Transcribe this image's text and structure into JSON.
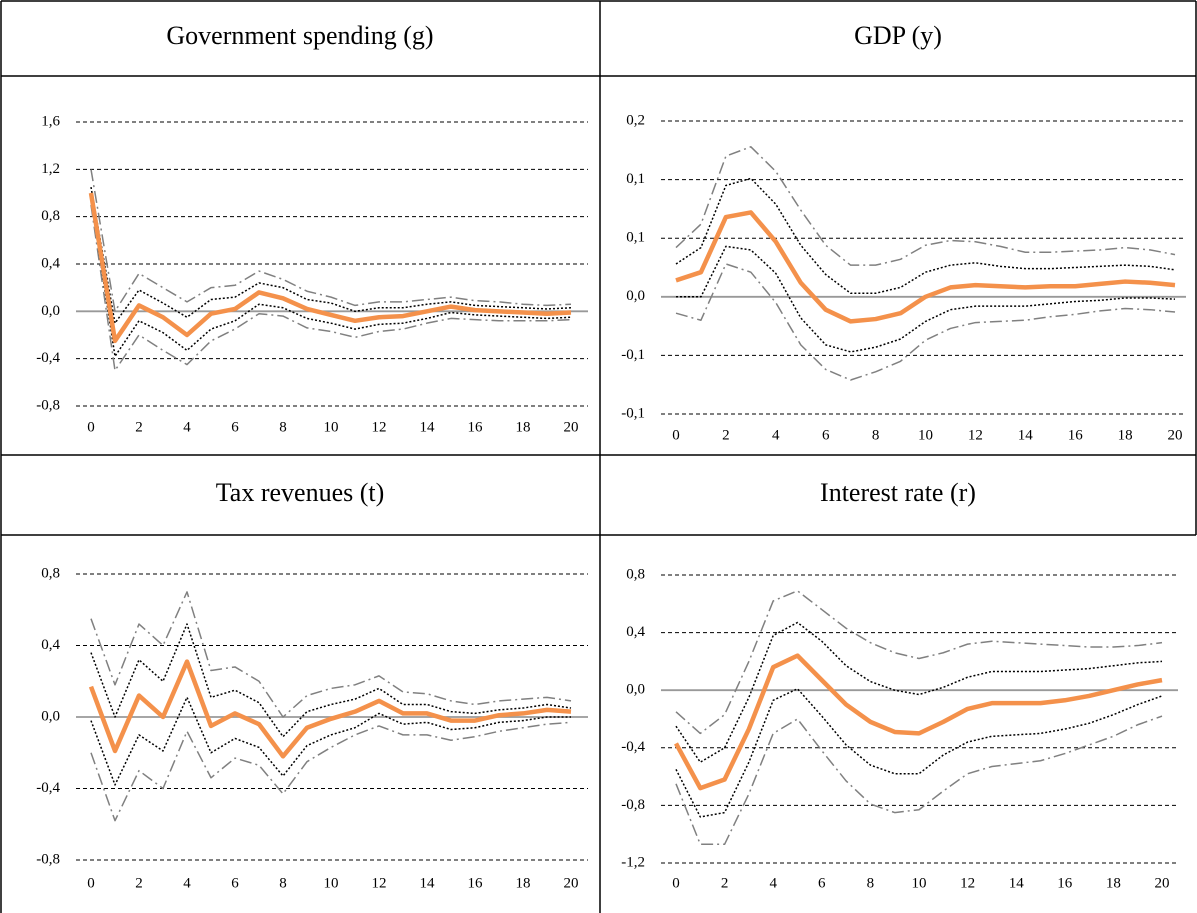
{
  "chart_data": [
    {
      "type": "line",
      "title": "Government spending (g)",
      "x": [
        0,
        1,
        2,
        3,
        4,
        5,
        6,
        7,
        8,
        9,
        10,
        11,
        12,
        13,
        14,
        15,
        16,
        17,
        18,
        19,
        20
      ],
      "xlim": [
        0,
        20
      ],
      "xticks": [
        0,
        2,
        4,
        6,
        8,
        10,
        12,
        14,
        16,
        18,
        20
      ],
      "ylim": [
        -0.8,
        1.6
      ],
      "yticks": [
        {
          "value": 1.6,
          "label": "1,6"
        },
        {
          "value": 1.2,
          "label": "1,2"
        },
        {
          "value": 0.8,
          "label": "0,8"
        },
        {
          "value": 0.4,
          "label": "0,4"
        },
        {
          "value": 0,
          "label": "0,0"
        },
        {
          "value": -0.4,
          "label": "-0,4"
        },
        {
          "value": -0.8,
          "label": "-0,8"
        }
      ],
      "grid": true,
      "series": [
        {
          "color": "#808080",
          "style": "dashdot",
          "values": [
            1.2,
            0.0,
            0.32,
            0.2,
            0.08,
            0.2,
            0.22,
            0.34,
            0.27,
            0.17,
            0.12,
            0.05,
            0.08,
            0.08,
            0.1,
            0.12,
            0.09,
            0.08,
            0.06,
            0.05,
            0.06
          ]
        },
        {
          "color": "#808080",
          "style": "dashdot",
          "values": [
            0.9,
            -0.5,
            -0.2,
            -0.33,
            -0.45,
            -0.25,
            -0.15,
            -0.02,
            -0.04,
            -0.14,
            -0.17,
            -0.22,
            -0.17,
            -0.15,
            -0.1,
            -0.06,
            -0.07,
            -0.08,
            -0.08,
            -0.08,
            -0.07
          ]
        },
        {
          "color": "#000000",
          "style": "dotted",
          "values": [
            1.05,
            -0.1,
            0.18,
            0.07,
            -0.05,
            0.1,
            0.12,
            0.24,
            0.2,
            0.1,
            0.07,
            0.0,
            0.03,
            0.03,
            0.06,
            0.08,
            0.05,
            0.04,
            0.03,
            0.02,
            0.03
          ]
        },
        {
          "color": "#000000",
          "style": "dotted",
          "values": [
            0.95,
            -0.38,
            -0.08,
            -0.18,
            -0.33,
            -0.15,
            -0.08,
            0.06,
            0.03,
            -0.06,
            -0.1,
            -0.15,
            -0.11,
            -0.1,
            -0.06,
            -0.01,
            -0.03,
            -0.04,
            -0.05,
            -0.06,
            -0.05
          ]
        },
        {
          "color": "#f4914b",
          "style": "solid",
          "values": [
            1.0,
            -0.25,
            0.05,
            -0.05,
            -0.2,
            -0.02,
            0.02,
            0.16,
            0.11,
            0.02,
            -0.03,
            -0.08,
            -0.05,
            -0.04,
            0.0,
            0.04,
            0.01,
            0.0,
            -0.01,
            -0.02,
            -0.01
          ]
        }
      ]
    },
    {
      "type": "line",
      "title": "GDP (y)",
      "x": [
        0,
        1,
        2,
        3,
        4,
        5,
        6,
        7,
        8,
        9,
        10,
        11,
        12,
        13,
        14,
        15,
        16,
        17,
        18,
        19,
        20
      ],
      "xlim": [
        0,
        20
      ],
      "xticks": [
        0,
        2,
        4,
        6,
        8,
        10,
        12,
        14,
        16,
        18,
        20
      ],
      "ylim": [
        -0.1,
        0.15
      ],
      "yticks": [
        {
          "value": 0.15,
          "label": "0,2"
        },
        {
          "value": 0.1,
          "label": "0,1"
        },
        {
          "value": 0.05,
          "label": "0,1"
        },
        {
          "value": 0,
          "label": "0,0"
        },
        {
          "value": -0.05,
          "label": "-0,1"
        },
        {
          "value": -0.1,
          "label": "-0,1"
        }
      ],
      "grid": true,
      "series": [
        {
          "color": "#808080",
          "style": "dashdot",
          "values": [
            0.042,
            0.062,
            0.12,
            0.128,
            0.107,
            0.074,
            0.044,
            0.027,
            0.027,
            0.032,
            0.044,
            0.048,
            0.047,
            0.043,
            0.038,
            0.038,
            0.039,
            0.04,
            0.042,
            0.04,
            0.036
          ]
        },
        {
          "color": "#808080",
          "style": "dashdot",
          "values": [
            -0.014,
            -0.02,
            0.028,
            0.021,
            -0.005,
            -0.041,
            -0.062,
            -0.071,
            -0.064,
            -0.055,
            -0.037,
            -0.027,
            -0.022,
            -0.021,
            -0.02,
            -0.017,
            -0.015,
            -0.012,
            -0.01,
            -0.011,
            -0.013
          ]
        },
        {
          "color": "#000000",
          "style": "dotted",
          "values": [
            0.028,
            0.042,
            0.095,
            0.101,
            0.079,
            0.044,
            0.019,
            0.003,
            0.003,
            0.008,
            0.021,
            0.027,
            0.029,
            0.026,
            0.024,
            0.024,
            0.025,
            0.026,
            0.027,
            0.026,
            0.023
          ]
        },
        {
          "color": "#000000",
          "style": "dotted",
          "values": [
            0,
            0,
            0.043,
            0.04,
            0.02,
            -0.018,
            -0.041,
            -0.047,
            -0.043,
            -0.036,
            -0.021,
            -0.011,
            -0.008,
            -0.008,
            -0.008,
            -0.006,
            -0.004,
            -0.003,
            -0.001,
            -0.001,
            -0.002
          ]
        },
        {
          "color": "#f4914b",
          "style": "solid",
          "values": [
            0.014,
            0.021,
            0.068,
            0.072,
            0.047,
            0.012,
            -0.011,
            -0.021,
            -0.019,
            -0.014,
            0,
            0.008,
            0.01,
            0.009,
            0.008,
            0.009,
            0.009,
            0.011,
            0.013,
            0.012,
            0.01
          ]
        }
      ]
    },
    {
      "type": "line",
      "title": "Tax revenues (t)",
      "x": [
        0,
        1,
        2,
        3,
        4,
        5,
        6,
        7,
        8,
        9,
        10,
        11,
        12,
        13,
        14,
        15,
        16,
        17,
        18,
        19,
        20
      ],
      "xlim": [
        0,
        20
      ],
      "xticks": [
        0,
        2,
        4,
        6,
        8,
        10,
        12,
        14,
        16,
        18,
        20
      ],
      "ylim": [
        -0.8,
        0.8
      ],
      "yticks": [
        {
          "value": 0.8,
          "label": "0,8"
        },
        {
          "value": 0.4,
          "label": "0,4"
        },
        {
          "value": 0,
          "label": "0,0"
        },
        {
          "value": -0.4,
          "label": "-0,4"
        },
        {
          "value": -0.8,
          "label": "-0,8"
        }
      ],
      "grid": true,
      "series": [
        {
          "color": "#808080",
          "style": "dashdot",
          "values": [
            0.55,
            0.18,
            0.52,
            0.4,
            0.7,
            0.26,
            0.28,
            0.2,
            0.0,
            0.12,
            0.16,
            0.18,
            0.23,
            0.14,
            0.13,
            0.09,
            0.07,
            0.09,
            0.1,
            0.11,
            0.09
          ]
        },
        {
          "color": "#808080",
          "style": "dashdot",
          "values": [
            -0.2,
            -0.58,
            -0.3,
            -0.4,
            -0.08,
            -0.34,
            -0.23,
            -0.27,
            -0.43,
            -0.25,
            -0.17,
            -0.1,
            -0.05,
            -0.1,
            -0.1,
            -0.13,
            -0.11,
            -0.08,
            -0.06,
            -0.04,
            -0.03
          ]
        },
        {
          "color": "#000000",
          "style": "dotted",
          "values": [
            0.36,
            0.0,
            0.32,
            0.2,
            0.52,
            0.11,
            0.15,
            0.08,
            -0.11,
            0.03,
            0.07,
            0.1,
            0.16,
            0.07,
            0.07,
            0.03,
            0.02,
            0.04,
            0.05,
            0.07,
            0.05
          ]
        },
        {
          "color": "#000000",
          "style": "dotted",
          "values": [
            -0.02,
            -0.38,
            -0.1,
            -0.19,
            0.11,
            -0.2,
            -0.12,
            -0.17,
            -0.33,
            -0.16,
            -0.1,
            -0.06,
            0.02,
            -0.04,
            -0.03,
            -0.07,
            -0.06,
            -0.03,
            -0.02,
            0.0,
            0.0
          ]
        },
        {
          "color": "#f4914b",
          "style": "solid",
          "values": [
            0.17,
            -0.19,
            0.12,
            0.0,
            0.31,
            -0.05,
            0.02,
            -0.04,
            -0.22,
            -0.06,
            -0.01,
            0.03,
            0.09,
            0.02,
            0.02,
            -0.02,
            -0.02,
            0.01,
            0.02,
            0.04,
            0.03
          ]
        }
      ]
    },
    {
      "type": "line",
      "title": "Interest rate (r)",
      "x": [
        0,
        1,
        2,
        3,
        4,
        5,
        6,
        7,
        8,
        9,
        10,
        11,
        12,
        13,
        14,
        15,
        16,
        17,
        18,
        19,
        20
      ],
      "xlim": [
        0,
        20
      ],
      "xticks": [
        0,
        2,
        4,
        6,
        8,
        10,
        12,
        14,
        16,
        18,
        20
      ],
      "ylim": [
        -1.2,
        0.8
      ],
      "yticks": [
        {
          "value": 0.8,
          "label": "0,8"
        },
        {
          "value": 0.4,
          "label": "0,4"
        },
        {
          "value": 0,
          "label": "0,0"
        },
        {
          "value": -0.4,
          "label": "-0,4"
        },
        {
          "value": -0.8,
          "label": "-0,8"
        },
        {
          "value": -1.2,
          "label": "-1,2"
        }
      ],
      "grid": true,
      "series": [
        {
          "color": "#808080",
          "style": "dashdot",
          "values": [
            -0.15,
            -0.3,
            -0.17,
            0.2,
            0.62,
            0.69,
            0.56,
            0.43,
            0.33,
            0.26,
            0.22,
            0.26,
            0.32,
            0.34,
            0.33,
            0.32,
            0.31,
            0.3,
            0.3,
            0.31,
            0.33
          ]
        },
        {
          "color": "#808080",
          "style": "dashdot",
          "values": [
            -0.65,
            -1.07,
            -1.07,
            -0.72,
            -0.3,
            -0.2,
            -0.42,
            -0.63,
            -0.79,
            -0.85,
            -0.83,
            -0.7,
            -0.58,
            -0.53,
            -0.51,
            -0.49,
            -0.44,
            -0.38,
            -0.32,
            -0.24,
            -0.18
          ]
        },
        {
          "color": "#000000",
          "style": "dotted",
          "values": [
            -0.25,
            -0.5,
            -0.4,
            -0.05,
            0.38,
            0.47,
            0.34,
            0.17,
            0.06,
            0.0,
            -0.03,
            0.02,
            0.09,
            0.13,
            0.13,
            0.13,
            0.14,
            0.15,
            0.17,
            0.19,
            0.2
          ]
        },
        {
          "color": "#000000",
          "style": "dotted",
          "values": [
            -0.55,
            -0.88,
            -0.85,
            -0.5,
            -0.07,
            0.01,
            -0.18,
            -0.38,
            -0.52,
            -0.58,
            -0.58,
            -0.45,
            -0.36,
            -0.32,
            -0.31,
            -0.3,
            -0.27,
            -0.23,
            -0.17,
            -0.1,
            -0.04
          ]
        },
        {
          "color": "#f4914b",
          "style": "solid",
          "values": [
            -0.37,
            -0.68,
            -0.62,
            -0.27,
            0.16,
            0.24,
            0.07,
            -0.1,
            -0.22,
            -0.29,
            -0.3,
            -0.22,
            -0.13,
            -0.09,
            -0.09,
            -0.09,
            -0.07,
            -0.04,
            0.0,
            0.04,
            0.07
          ]
        }
      ]
    }
  ]
}
